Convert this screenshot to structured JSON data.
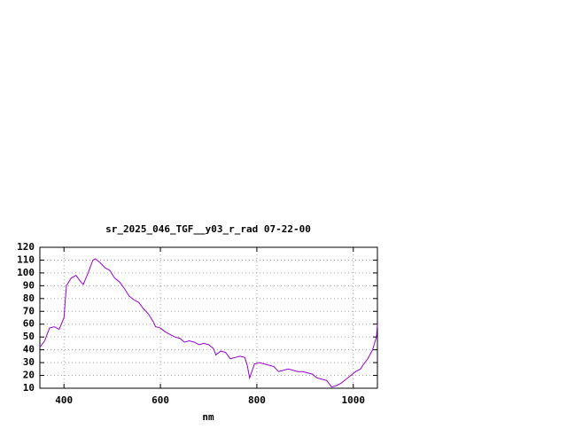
{
  "chart_data": {
    "type": "line",
    "title": "sr_2025_046_TGF__y03_r_rad 07-22-00",
    "x_label": "nm",
    "x": [
      350,
      360,
      370,
      380,
      390,
      400,
      405,
      415,
      425,
      435,
      440,
      450,
      460,
      465,
      475,
      485,
      495,
      505,
      515,
      525,
      535,
      545,
      555,
      565,
      575,
      585,
      590,
      600,
      610,
      620,
      630,
      640,
      650,
      660,
      670,
      680,
      690,
      700,
      710,
      715,
      725,
      735,
      745,
      755,
      765,
      775,
      780,
      785,
      795,
      805,
      815,
      825,
      835,
      845,
      855,
      865,
      875,
      885,
      895,
      905,
      915,
      925,
      935,
      945,
      955,
      965,
      975,
      985,
      995,
      1005,
      1015,
      1020,
      1030,
      1040,
      1048,
      1050
    ],
    "series": [
      {
        "color": "#9400d3",
        "values": [
          42,
          47,
          57,
          58,
          56,
          65,
          90,
          96,
          98,
          93,
          91,
          100,
          110,
          111,
          108,
          104,
          102,
          96,
          93,
          88,
          82,
          79,
          77,
          72,
          68,
          62,
          58,
          57,
          54,
          52,
          50,
          49,
          46,
          47,
          46,
          44,
          45,
          44,
          41,
          36,
          39,
          38,
          33,
          34,
          35,
          34,
          28,
          18,
          29,
          30,
          29,
          28,
          27,
          23,
          24,
          25,
          24,
          23,
          23,
          22,
          21,
          18,
          17,
          16,
          11,
          12,
          14,
          17,
          20,
          23,
          25,
          28,
          33,
          40,
          50,
          60
        ]
      }
    ],
    "xlim": [
      350,
      1050
    ],
    "xticks": [
      400,
      600,
      800,
      1000
    ],
    "ylim": [
      10,
      120
    ],
    "yticks": [
      10,
      20,
      30,
      40,
      50,
      60,
      70,
      80,
      90,
      100,
      110,
      120
    ],
    "grid": true
  }
}
